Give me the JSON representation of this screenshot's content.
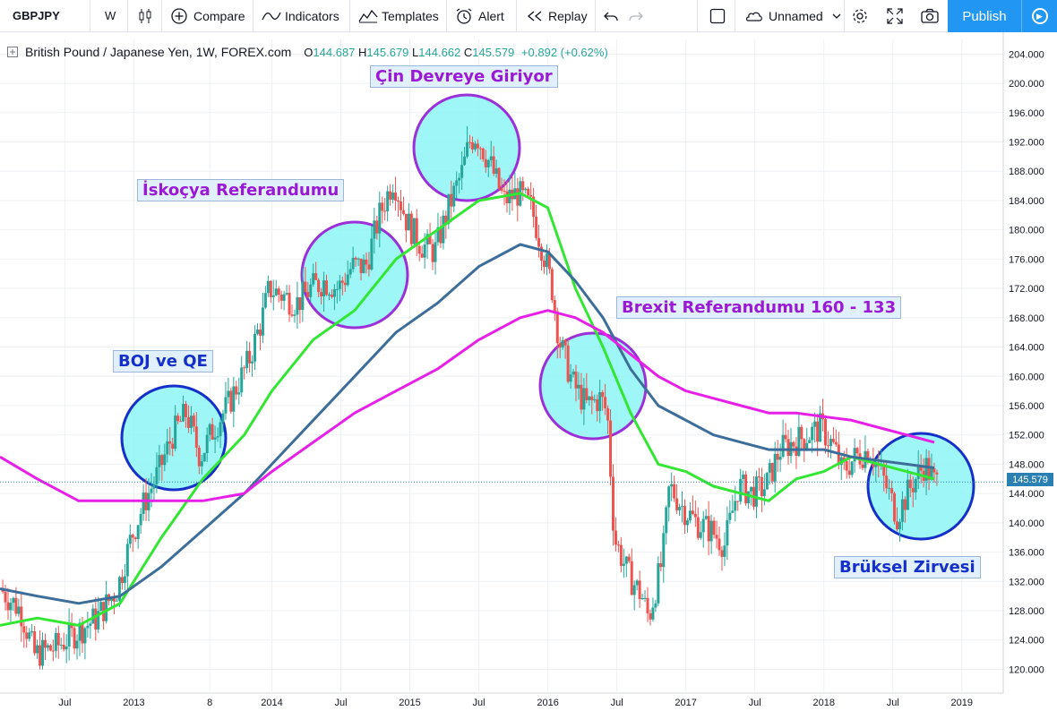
{
  "toolbar": {
    "symbol": "GBPJPY",
    "interval": "W",
    "compare": "Compare",
    "indicators": "Indicators",
    "templates": "Templates",
    "alert": "Alert",
    "replay": "Replay",
    "layout_name": "Unnamed",
    "publish": "Publish"
  },
  "legend": {
    "title": "British Pound / Japanese Yen, 1W, FOREX.com",
    "o_label": "O",
    "o_value": "144.687",
    "h_label": "H",
    "h_value": "145.679",
    "l_label": "L",
    "l_value": "144.662",
    "c_label": "C",
    "c_value": "145.579",
    "change": "+0.892 (+0.62%)"
  },
  "annotations": [
    {
      "text": "Çin Devreye Giriyor",
      "color": "purple"
    },
    {
      "text": "İskoçya Referandumu",
      "color": "purple"
    },
    {
      "text": "Brexit Referandumu 160 - 133",
      "color": "purple"
    },
    {
      "text": "BOJ ve QE",
      "color": "blue"
    },
    {
      "text": "Brüksel Zirvesi",
      "color": "blue"
    }
  ],
  "colors": {
    "up": "#26a69a",
    "down": "#ef5350",
    "ma_short": "#33e633",
    "ma_mid": "#3d6e99",
    "ma_long": "#e620e6",
    "circle_fill": "#8ef5f5",
    "circle_stroke_purple": "#9b30d9",
    "circle_stroke_blue": "#1530c8",
    "price_tag": "#2a7fb3"
  },
  "chart_data": {
    "type": "line",
    "title": "British Pound / Japanese Yen, 1W, FOREX.com",
    "last_price": "145.579",
    "ylim": [
      117,
      206
    ],
    "y_ticks": [
      "120.000",
      "124.000",
      "128.000",
      "132.000",
      "136.000",
      "140.000",
      "144.000",
      "148.000",
      "152.000",
      "156.000",
      "160.000",
      "164.000",
      "168.000",
      "172.000",
      "176.000",
      "180.000",
      "184.000",
      "188.000",
      "192.000",
      "196.000",
      "200.000",
      "204.000"
    ],
    "x_ticks": [
      "Jul",
      "2013",
      "8",
      "2014",
      "Jul",
      "2015",
      "Jul",
      "2016",
      "Jul",
      "2017",
      "Jul",
      "2018",
      "Jul",
      "2019"
    ],
    "x_tick_times": [
      2012.5,
      2013.0,
      2013.55,
      2014.0,
      2014.5,
      2015.0,
      2015.5,
      2016.0,
      2016.5,
      2017.0,
      2017.5,
      2018.0,
      2018.5,
      2019.0
    ],
    "xlim": [
      2012.03,
      2019.3
    ],
    "price_path": [
      [
        2012.05,
        131
      ],
      [
        2012.2,
        128
      ],
      [
        2012.3,
        122
      ],
      [
        2012.45,
        123
      ],
      [
        2012.6,
        125
      ],
      [
        2012.75,
        127
      ],
      [
        2012.9,
        131
      ],
      [
        2013.0,
        138
      ],
      [
        2013.1,
        143
      ],
      [
        2013.2,
        147
      ],
      [
        2013.3,
        152
      ],
      [
        2013.4,
        155
      ],
      [
        2013.5,
        149
      ],
      [
        2013.6,
        153
      ],
      [
        2013.7,
        156
      ],
      [
        2013.85,
        162
      ],
      [
        2013.95,
        168
      ],
      [
        2014.0,
        172
      ],
      [
        2014.1,
        171
      ],
      [
        2014.2,
        170
      ],
      [
        2014.3,
        172
      ],
      [
        2014.4,
        173
      ],
      [
        2014.5,
        172
      ],
      [
        2014.6,
        175
      ],
      [
        2014.7,
        175
      ],
      [
        2014.8,
        182
      ],
      [
        2014.9,
        187
      ],
      [
        2015.0,
        181
      ],
      [
        2015.1,
        178
      ],
      [
        2015.2,
        177
      ],
      [
        2015.3,
        183
      ],
      [
        2015.4,
        188
      ],
      [
        2015.45,
        192
      ],
      [
        2015.5,
        193
      ],
      [
        2015.6,
        189
      ],
      [
        2015.7,
        184
      ],
      [
        2015.8,
        185
      ],
      [
        2015.9,
        183
      ],
      [
        2016.0,
        176
      ],
      [
        2016.05,
        172
      ],
      [
        2016.1,
        165
      ],
      [
        2016.2,
        159
      ],
      [
        2016.3,
        156
      ],
      [
        2016.4,
        157
      ],
      [
        2016.45,
        155
      ],
      [
        2016.5,
        138
      ],
      [
        2016.6,
        133
      ],
      [
        2016.7,
        130
      ],
      [
        2016.75,
        127
      ],
      [
        2016.85,
        135
      ],
      [
        2016.9,
        145
      ],
      [
        2017.0,
        142
      ],
      [
        2017.1,
        140
      ],
      [
        2017.2,
        139
      ],
      [
        2017.3,
        137
      ],
      [
        2017.4,
        145
      ],
      [
        2017.5,
        144
      ],
      [
        2017.6,
        145
      ],
      [
        2017.7,
        150
      ],
      [
        2017.8,
        151
      ],
      [
        2017.9,
        152
      ],
      [
        2018.0,
        153
      ],
      [
        2018.1,
        150
      ],
      [
        2018.15,
        147
      ],
      [
        2018.25,
        149
      ],
      [
        2018.35,
        150
      ],
      [
        2018.45,
        146
      ],
      [
        2018.55,
        141
      ],
      [
        2018.65,
        145
      ],
      [
        2018.75,
        148
      ],
      [
        2018.82,
        145.579
      ]
    ],
    "series": [
      {
        "name": "",
        "color": "#33e633",
        "points": [
          [
            2012.03,
            126
          ],
          [
            2012.3,
            127
          ],
          [
            2012.6,
            126
          ],
          [
            2012.9,
            129
          ],
          [
            2013.2,
            138
          ],
          [
            2013.5,
            146
          ],
          [
            2013.8,
            152
          ],
          [
            2014.0,
            158
          ],
          [
            2014.3,
            165
          ],
          [
            2014.6,
            169
          ],
          [
            2014.9,
            176
          ],
          [
            2015.2,
            180
          ],
          [
            2015.5,
            184
          ],
          [
            2015.8,
            185
          ],
          [
            2016.0,
            183
          ],
          [
            2016.2,
            172
          ],
          [
            2016.4,
            164
          ],
          [
            2016.6,
            155
          ],
          [
            2016.8,
            148
          ],
          [
            2017.0,
            147
          ],
          [
            2017.2,
            145
          ],
          [
            2017.4,
            144
          ],
          [
            2017.6,
            143
          ],
          [
            2017.8,
            146
          ],
          [
            2018.0,
            147
          ],
          [
            2018.2,
            149
          ],
          [
            2018.4,
            148
          ],
          [
            2018.6,
            147
          ],
          [
            2018.8,
            146
          ]
        ]
      },
      {
        "name": "",
        "color": "#3d6e99",
        "points": [
          [
            2012.03,
            131
          ],
          [
            2012.3,
            130
          ],
          [
            2012.6,
            129
          ],
          [
            2012.9,
            130
          ],
          [
            2013.2,
            134
          ],
          [
            2013.5,
            139
          ],
          [
            2013.8,
            144
          ],
          [
            2014.0,
            148
          ],
          [
            2014.3,
            154
          ],
          [
            2014.6,
            160
          ],
          [
            2014.9,
            166
          ],
          [
            2015.2,
            170
          ],
          [
            2015.5,
            175
          ],
          [
            2015.8,
            178
          ],
          [
            2016.0,
            177
          ],
          [
            2016.2,
            173
          ],
          [
            2016.4,
            168
          ],
          [
            2016.6,
            161
          ],
          [
            2016.8,
            156
          ],
          [
            2017.0,
            154
          ],
          [
            2017.2,
            152
          ],
          [
            2017.4,
            151
          ],
          [
            2017.6,
            150
          ],
          [
            2017.8,
            150
          ],
          [
            2018.0,
            150
          ],
          [
            2018.2,
            149
          ],
          [
            2018.4,
            148.5
          ],
          [
            2018.6,
            148
          ],
          [
            2018.8,
            147.5
          ]
        ]
      },
      {
        "name": "",
        "color": "#e620e6",
        "points": [
          [
            2012.03,
            149
          ],
          [
            2012.3,
            146
          ],
          [
            2012.6,
            143
          ],
          [
            2012.9,
            143
          ],
          [
            2013.2,
            143
          ],
          [
            2013.5,
            143
          ],
          [
            2013.8,
            144
          ],
          [
            2014.0,
            147
          ],
          [
            2014.3,
            151
          ],
          [
            2014.6,
            155
          ],
          [
            2014.9,
            158
          ],
          [
            2015.2,
            161
          ],
          [
            2015.5,
            165
          ],
          [
            2015.8,
            168
          ],
          [
            2016.0,
            169
          ],
          [
            2016.2,
            168
          ],
          [
            2016.4,
            166
          ],
          [
            2016.6,
            163
          ],
          [
            2016.8,
            160
          ],
          [
            2017.0,
            158
          ],
          [
            2017.2,
            157
          ],
          [
            2017.4,
            156
          ],
          [
            2017.6,
            155
          ],
          [
            2017.8,
            155
          ],
          [
            2018.0,
            154.5
          ],
          [
            2018.2,
            154
          ],
          [
            2018.4,
            153
          ],
          [
            2018.6,
            152
          ],
          [
            2018.8,
            151
          ]
        ]
      }
    ]
  }
}
